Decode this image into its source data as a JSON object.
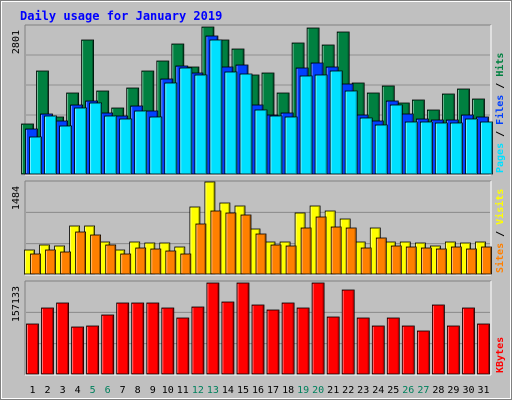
{
  "title": "Daily usage for January 2019",
  "colors": {
    "background": "#c0c0c0",
    "title": "#0000ff",
    "hits": "#008040",
    "files": "#0040ff",
    "pages": "#00e0ff",
    "visits": "#ffff00",
    "sites": "#ff8000",
    "kbytes": "#ff0000",
    "weekend_day_label": "#00805c",
    "weekday_label": "#000000"
  },
  "chart_data": [
    {
      "type": "bar",
      "name": "hits_files_pages",
      "side_label": [
        "Pages",
        " / ",
        "Files",
        " / ",
        "Hits"
      ],
      "tick_label": "2801",
      "ylim": [
        0,
        2801
      ],
      "categories": [
        "1",
        "2",
        "3",
        "4",
        "5",
        "6",
        "7",
        "8",
        "9",
        "10",
        "11",
        "12",
        "13",
        "14",
        "15",
        "16",
        "17",
        "18",
        "19",
        "20",
        "21",
        "22",
        "23",
        "24",
        "25",
        "26",
        "27",
        "28",
        "29",
        "30",
        "31"
      ],
      "series": [
        {
          "name": "Hits",
          "values": [
            955,
            1958,
            1082,
            1538,
            2545,
            1578,
            1240,
            1625,
            1958,
            2142,
            2454,
            2030,
            2791,
            2534,
            2357,
            1873,
            1918,
            1538,
            2480,
            2758,
            2443,
            2688,
            1727,
            1538,
            1662,
            1347,
            1398,
            1203,
            1512,
            1617,
            1423
          ]
        },
        {
          "name": "Files",
          "values": [
            858,
            1133,
            997,
            1303,
            1390,
            1157,
            1101,
            1278,
            1187,
            1795,
            2044,
            1910,
            2619,
            2020,
            2067,
            1311,
            1114,
            1148,
            2010,
            2104,
            2023,
            1700,
            1115,
            1010,
            1380,
            1131,
            1043,
            1024,
            1013,
            1111,
            1071
          ]
        },
        {
          "name": "Pages",
          "values": [
            701,
            1090,
            910,
            1250,
            1340,
            1090,
            1040,
            1200,
            1080,
            1730,
            2000,
            1870,
            2534,
            1930,
            1900,
            1220,
            1090,
            1070,
            1860,
            1870,
            1950,
            1570,
            1060,
            920,
            1300,
            980,
            980,
            970,
            970,
            1040,
            990
          ]
        }
      ]
    },
    {
      "type": "bar",
      "name": "visits_sites",
      "side_label": [
        "Sites",
        " / ",
        "Visits"
      ],
      "tick_label": "1484",
      "ylim": [
        0,
        1484
      ],
      "categories": [
        "1",
        "2",
        "3",
        "4",
        "5",
        "6",
        "7",
        "8",
        "9",
        "10",
        "11",
        "12",
        "13",
        "14",
        "15",
        "16",
        "17",
        "18",
        "19",
        "20",
        "21",
        "22",
        "23",
        "24",
        "25",
        "26",
        "27",
        "28",
        "29",
        "30",
        "31"
      ],
      "series": [
        {
          "name": "Visits",
          "values": [
            387,
            461,
            446,
            775,
            775,
            520,
            387,
            520,
            505,
            505,
            431,
            1080,
            1484,
            1153,
            1100,
            730,
            524,
            520,
            982,
            1100,
            1020,
            890,
            520,
            740,
            520,
            510,
            500,
            450,
            520,
            500,
            520
          ]
        },
        {
          "name": "Sites",
          "values": [
            330,
            392,
            360,
            673,
            630,
            460,
            330,
            416,
            400,
            370,
            330,
            800,
            1020,
            990,
            950,
            650,
            460,
            450,
            750,
            920,
            760,
            740,
            420,
            580,
            450,
            430,
            420,
            400,
            430,
            410,
            430
          ]
        }
      ]
    },
    {
      "type": "bar",
      "name": "kbytes",
      "side_label": [
        "KBytes"
      ],
      "tick_label": "157133",
      "ylim": [
        0,
        157133
      ],
      "categories": [
        "1",
        "2",
        "3",
        "4",
        "5",
        "6",
        "7",
        "8",
        "9",
        "10",
        "11",
        "12",
        "13",
        "14",
        "15",
        "16",
        "17",
        "18",
        "19",
        "20",
        "21",
        "22",
        "23",
        "24",
        "25",
        "26",
        "27",
        "28",
        "29",
        "30",
        "31"
      ],
      "series": [
        {
          "name": "KBytes",
          "values": [
            85160,
            112560,
            120440,
            79430,
            82320,
            100960,
            120440,
            120440,
            120440,
            112560,
            95360,
            115120,
            155290,
            122640,
            155070,
            117920,
            109070,
            120440,
            112560,
            155290,
            97570,
            143910,
            95360,
            82320,
            95360,
            82320,
            74190,
            117920,
            82320,
            112560,
            85160
          ]
        }
      ]
    }
  ]
}
